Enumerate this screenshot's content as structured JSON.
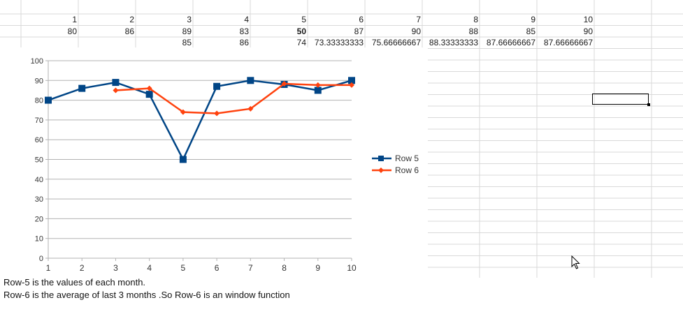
{
  "spreadsheet": {
    "row_headers": [
      "1",
      "2",
      "3",
      "4",
      "5",
      "6",
      "7",
      "8",
      "9",
      "10"
    ],
    "row_values": [
      "80",
      "86",
      "89",
      "83",
      "50",
      "87",
      "90",
      "88",
      "85",
      "90"
    ],
    "row_averages": [
      "",
      "",
      "85",
      "86",
      "74",
      "73.33333333",
      "75.66666667",
      "88.33333333",
      "87.66666667",
      "87.66666667"
    ],
    "bold_cell_index": 4
  },
  "chart_data": {
    "type": "line",
    "x": [
      1,
      2,
      3,
      4,
      5,
      6,
      7,
      8,
      9,
      10
    ],
    "series": [
      {
        "name": "Row 5",
        "values": [
          80,
          86,
          89,
          83,
          50,
          87,
          90,
          88,
          85,
          90
        ],
        "color": "#004586",
        "marker": "square"
      },
      {
        "name": "Row 6",
        "values": [
          null,
          null,
          85,
          86,
          74,
          73.33333333,
          75.66666667,
          88.33333333,
          87.66666667,
          87.66666667
        ],
        "color": "#ff420e",
        "marker": "diamond"
      }
    ],
    "xlim": [
      1,
      10
    ],
    "ylim": [
      0,
      100
    ],
    "yticks": [
      0,
      10,
      20,
      30,
      40,
      50,
      60,
      70,
      80,
      90,
      100
    ],
    "grid": true,
    "legend_placement": "right"
  },
  "notes": {
    "line1": "Row-5 is the values of each month.",
    "line2": "Row-6 is the average of last 3 months .So Row-6 is an window function"
  }
}
